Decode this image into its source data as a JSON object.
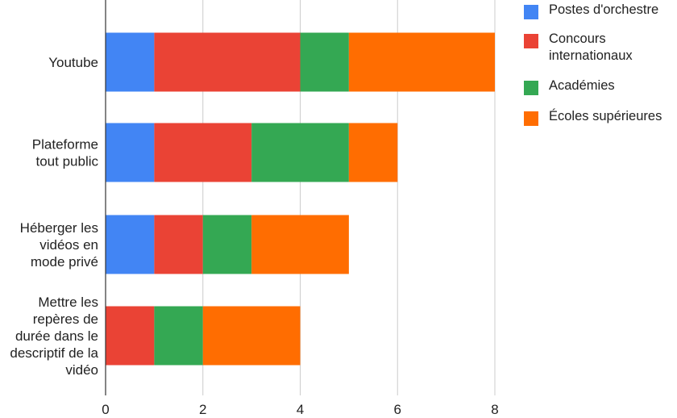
{
  "chart_data": {
    "type": "bar",
    "orientation": "horizontal",
    "stacked": true,
    "categories": [
      "Youtube",
      "Plateforme tout public",
      "Héberger les vidéos en mode privé",
      "Mettre les repères de durée dans le descriptif de la vidéo"
    ],
    "category_lines": [
      [
        "Youtube"
      ],
      [
        "Plateforme",
        "tout public"
      ],
      [
        "Héberger les",
        "vidéos en",
        "mode privé"
      ],
      [
        "Mettre les",
        "repères de",
        "durée dans le",
        "descriptif de la",
        "vidéo"
      ]
    ],
    "series": [
      {
        "name": "Postes d'orchestre",
        "color": "#4285F4",
        "values": [
          1,
          1,
          1,
          0
        ]
      },
      {
        "name": "Concours internationaux",
        "color": "#EA4335",
        "values": [
          3,
          2,
          1,
          1
        ]
      },
      {
        "name": "Académies",
        "color": "#34A853",
        "values": [
          1,
          2,
          1,
          1
        ]
      },
      {
        "name": "Écoles supérieures",
        "color": "#FF6D01",
        "values": [
          3,
          1,
          2,
          2
        ]
      }
    ],
    "legend_lines": [
      [
        "Postes d'orchestre"
      ],
      [
        "Concours",
        "internationaux"
      ],
      [
        "Académies"
      ],
      [
        "Écoles supérieures"
      ]
    ],
    "xlim": [
      0,
      8
    ],
    "xticks": [
      "0",
      "2",
      "4",
      "6",
      "8"
    ],
    "grid": true,
    "legend_position": "top-right",
    "title": "",
    "xlabel": "",
    "ylabel": ""
  }
}
